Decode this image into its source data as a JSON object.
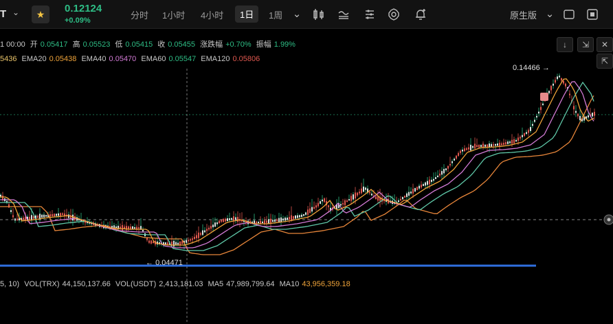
{
  "toolbar": {
    "symbol": "T",
    "price": "0.12124",
    "change": "+0.09%",
    "timeframes": [
      "分时",
      "1小时",
      "4小时",
      "1日",
      "1周"
    ],
    "active_timeframe": "1日",
    "version_label": "原生版"
  },
  "info": {
    "time": "1 00:00",
    "open_label": "开",
    "open": "0.05417",
    "high_label": "高",
    "high": "0.05523",
    "low_label": "低",
    "low": "0.05415",
    "close_label": "收",
    "close": "0.05455",
    "change_label": "涨跌幅",
    "change": "+0.70%",
    "amp_label": "振幅",
    "amp": "1.99%"
  },
  "ema": {
    "first_value": "5436",
    "ema20_label": "EMA20",
    "ema20": "0.05438",
    "ema40_label": "EMA40",
    "ema40": "0.05470",
    "ema60_label": "EMA60",
    "ema60": "0.05547",
    "ema120_label": "EMA120",
    "ema120": "0.05806"
  },
  "chart": {
    "high_marker": "0.14466",
    "low_marker": "0.04471",
    "colors": {
      "up": "#2ebd85",
      "down": "#e0584f",
      "ema20": "#f0a43a",
      "ema40": "#d37bd6",
      "ema60": "#5fc8a8",
      "ema120": "#e8863a",
      "support": "#2f6fe0"
    }
  },
  "volume": {
    "params": "5, 10)",
    "vol_trx_label": "VOL(TRX)",
    "vol_trx": "44,150,137.66",
    "vol_usdt_label": "VOL(USDT)",
    "vol_usdt": "2,413,181.03",
    "ma5_label": "MA5",
    "ma5": "47,989,799.64",
    "ma10_label": "MA10",
    "ma10": "43,956,359.18"
  }
}
